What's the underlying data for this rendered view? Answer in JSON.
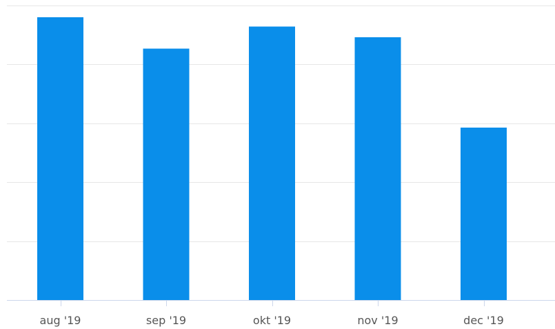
{
  "chart_data": {
    "type": "bar",
    "categories": [
      "aug '19",
      "sep '19",
      "okt '19",
      "nov '19",
      "dec '19"
    ],
    "series": [
      {
        "values": [
          4.8,
          4.27,
          4.64,
          4.46,
          2.93
        ],
        "color": "#0a8eea"
      }
    ],
    "ylim": [
      0,
      5
    ],
    "grid": true,
    "legend": "none",
    "title": "",
    "xlabel": "",
    "ylabel": ""
  }
}
